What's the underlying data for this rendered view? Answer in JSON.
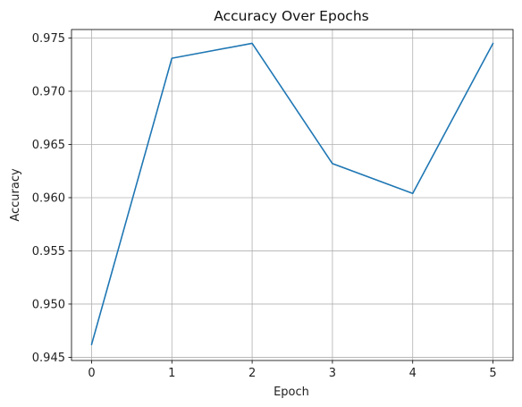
{
  "chart_data": {
    "type": "line",
    "title": "Accuracy Over Epochs",
    "xlabel": "Epoch",
    "ylabel": "Accuracy",
    "xlim": [
      -0.25,
      5.25
    ],
    "ylim": [
      0.9447,
      0.9758
    ],
    "x_ticks": [
      0,
      1,
      2,
      3,
      4,
      5
    ],
    "y_ticks": [
      0.945,
      0.95,
      0.955,
      0.96,
      0.965,
      0.97,
      0.975
    ],
    "y_tick_labels": [
      "0.945",
      "0.950",
      "0.955",
      "0.960",
      "0.965",
      "0.970",
      "0.975"
    ],
    "grid": true,
    "series": [
      {
        "color": "#1f77b4",
        "x": [
          0,
          1,
          2,
          3,
          4,
          5
        ],
        "y": [
          0.9462,
          0.9731,
          0.9745,
          0.9632,
          0.9604,
          0.9745
        ]
      }
    ]
  }
}
